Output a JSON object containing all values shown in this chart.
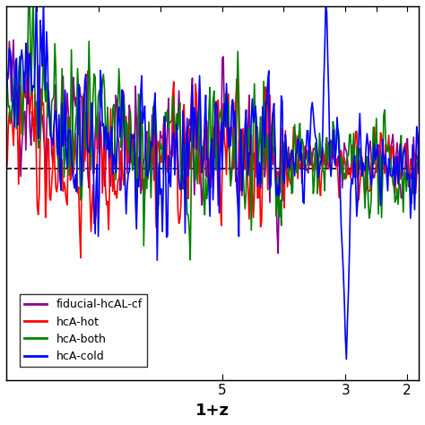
{
  "title": "",
  "xlabel": "1+z",
  "ylabel": "",
  "xlim_left": 8.5,
  "xlim_right": 1.81,
  "ylim_bottom": -2.3,
  "ylim_top": 1.5,
  "dashed_y": -0.15,
  "legend_labels": [
    "fiducial-hcAL-cf",
    "hcA-hot",
    "hcA-both",
    "hcA-cold"
  ],
  "line_colors": [
    "#8B008B",
    "#FF0000",
    "#008000",
    "#0000FF"
  ],
  "xticks": [
    2,
    3,
    5
  ],
  "xticklabels": [
    "2",
    "3",
    "5"
  ],
  "background": "#ffffff"
}
